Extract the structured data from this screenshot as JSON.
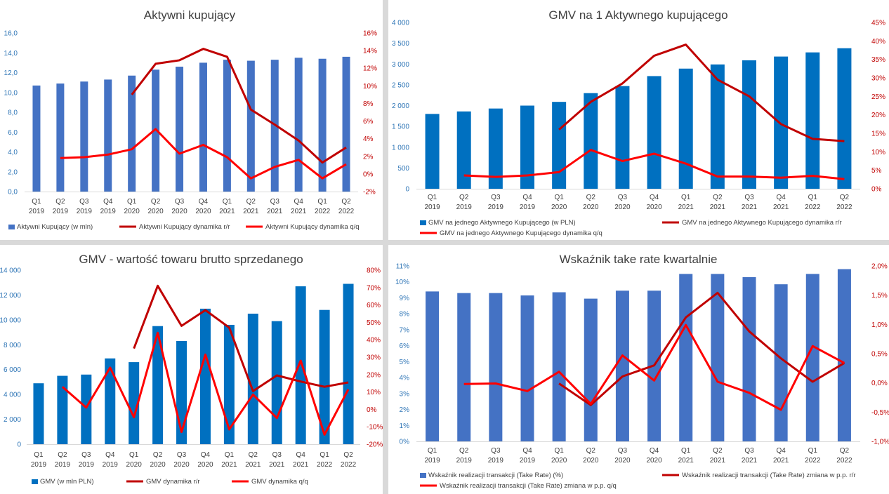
{
  "colors": {
    "bar_a": "#4472c4",
    "bar_b": "#0070c0",
    "line_yoy": "#c00000",
    "line_qoq": "#ff0000",
    "left_axis_text": "#2e75b6",
    "right_axis_text": "#c00000",
    "category_text": "#404040"
  },
  "categories": [
    {
      "q": "Q1",
      "y": "2019"
    },
    {
      "q": "Q2",
      "y": "2019"
    },
    {
      "q": "Q3",
      "y": "2019"
    },
    {
      "q": "Q4",
      "y": "2019"
    },
    {
      "q": "Q1",
      "y": "2020"
    },
    {
      "q": "Q2",
      "y": "2020"
    },
    {
      "q": "Q3",
      "y": "2020"
    },
    {
      "q": "Q4",
      "y": "2020"
    },
    {
      "q": "Q1",
      "y": "2021"
    },
    {
      "q": "Q2",
      "y": "2021"
    },
    {
      "q": "Q3",
      "y": "2021"
    },
    {
      "q": "Q4",
      "y": "2021"
    },
    {
      "q": "Q1",
      "y": "2022"
    },
    {
      "q": "Q2",
      "y": "2022"
    }
  ],
  "chart_data": [
    {
      "type": "bar",
      "title": "Aktywni kupujący",
      "left_axis": {
        "min": 0,
        "max": 16,
        "ticks": [
          "0,0",
          "2,0",
          "4,0",
          "6,0",
          "8,0",
          "10,0",
          "12,0",
          "14,0",
          "16,0"
        ]
      },
      "right_axis": {
        "min": -2,
        "max": 16,
        "ticks": [
          "-2%",
          "0%",
          "2%",
          "4%",
          "6%",
          "8%",
          "10%",
          "12%",
          "14%",
          "16%"
        ]
      },
      "bars": {
        "name": "Aktywni Kupujący (w mln)",
        "values": [
          10.7,
          10.9,
          11.1,
          11.3,
          11.7,
          12.3,
          12.6,
          13.0,
          13.3,
          13.2,
          13.3,
          13.5,
          13.4,
          13.6
        ]
      },
      "yoy": {
        "name": "Aktywni Kupujący dynamika r/r",
        "values": [
          null,
          null,
          null,
          null,
          9.0,
          12.5,
          12.9,
          14.2,
          13.3,
          7.3,
          5.6,
          3.8,
          1.3,
          3.0
        ]
      },
      "qoq": {
        "name": "Aktywni Kupujący dynamika q/q",
        "values": [
          null,
          1.8,
          1.9,
          2.2,
          2.8,
          5.1,
          2.3,
          3.3,
          1.9,
          -0.5,
          0.8,
          1.6,
          -0.5,
          1.1
        ]
      },
      "legend_order": [
        "bars",
        "yoy",
        "qoq"
      ]
    },
    {
      "type": "bar",
      "title": "GMV na 1 Aktywnego kupującego",
      "left_axis": {
        "min": 0,
        "max": 4000,
        "ticks": [
          "0",
          "500",
          "1 000",
          "1 500",
          "2 000",
          "2 500",
          "3 000",
          "3 500",
          "4 000"
        ]
      },
      "right_axis": {
        "min": 0,
        "max": 45,
        "ticks": [
          "0%",
          "5%",
          "10%",
          "15%",
          "20%",
          "25%",
          "30%",
          "35%",
          "40%",
          "45%"
        ]
      },
      "bars": {
        "name": "GMV na jednego Aktywnego Kupującego (w PLN)",
        "values": [
          1800,
          1860,
          1930,
          2000,
          2090,
          2300,
          2470,
          2710,
          2890,
          2990,
          3090,
          3180,
          3280,
          3380
        ]
      },
      "yoy": {
        "name": "GMV na jednego Aktywnego Kupującego dynamika r/r",
        "values": [
          null,
          null,
          null,
          null,
          16,
          23.5,
          28.5,
          36,
          39,
          29.5,
          25,
          17.5,
          13.5,
          12.9
        ]
      },
      "qoq": {
        "name": "GMV na jednego Aktywnego Kupującego dynamika q/q",
        "values": [
          null,
          3.6,
          3.2,
          3.6,
          4.5,
          10.5,
          7.5,
          9.5,
          6.8,
          3.3,
          3.3,
          3.0,
          3.5,
          2.6
        ]
      },
      "legend_order": [
        "bars",
        "yoy",
        "qoq"
      ]
    },
    {
      "type": "bar",
      "title": "GMV - wartość towaru brutto sprzedanego",
      "left_axis": {
        "min": 0,
        "max": 14000,
        "ticks": [
          "0",
          "2 000",
          "4 000",
          "6 000",
          "8 000",
          "10 000",
          "12 000",
          "14 000"
        ]
      },
      "right_axis": {
        "min": -20,
        "max": 80,
        "ticks": [
          "-20%",
          "-10%",
          "0%",
          "10%",
          "20%",
          "30%",
          "40%",
          "50%",
          "60%",
          "70%",
          "80%"
        ]
      },
      "bars": {
        "name": "GMV (w mln PLN)",
        "values": [
          4900,
          5500,
          5600,
          6900,
          6600,
          9500,
          8300,
          10900,
          9600,
          10500,
          9900,
          12700,
          10800,
          12900
        ]
      },
      "yoy": {
        "name": "GMV dynamika r/r",
        "values": [
          null,
          null,
          null,
          null,
          35,
          71,
          48,
          57,
          47,
          10.5,
          19.5,
          16,
          13,
          15.5
        ]
      },
      "qoq": {
        "name": "GMV dynamika q/q",
        "values": [
          null,
          13,
          1,
          24,
          -4.5,
          44,
          -13,
          31.5,
          -11.5,
          8.5,
          -5,
          28,
          -14.5,
          11.5
        ]
      },
      "legend_order": [
        "bars",
        "yoy",
        "qoq"
      ]
    },
    {
      "type": "bar",
      "title": "Wskaźnik take rate kwartalnie",
      "left_axis": {
        "min": 0,
        "max": 11,
        "ticks": [
          "0%",
          "1%",
          "2%",
          "3%",
          "4%",
          "5%",
          "6%",
          "7%",
          "8%",
          "9%",
          "10%",
          "11%"
        ]
      },
      "right_axis": {
        "min": -1.0,
        "max": 2.0,
        "ticks": [
          "-1,0%",
          "-0,5%",
          "0,0%",
          "0,5%",
          "1,0%",
          "1,5%",
          "2,0%"
        ]
      },
      "bars": {
        "name": "Wskaźnik realizacji transakcji (Take Rate) (%)",
        "values": [
          9.4,
          9.3,
          9.3,
          9.15,
          9.35,
          8.95,
          9.45,
          9.45,
          10.5,
          10.5,
          10.3,
          9.85,
          10.5,
          10.8
        ]
      },
      "yoy": {
        "name": "Wskaźnik realizacji transakcji (Take Rate) zmiana w p.p. r/r",
        "values": [
          null,
          null,
          null,
          null,
          -0.01,
          -0.38,
          0.11,
          0.3,
          1.12,
          1.54,
          0.88,
          0.42,
          0.02,
          0.34
        ]
      },
      "qoq": {
        "name": "Wskaźnik realizacji transakcji (Take Rate) zmiana w p.p. q/q",
        "values": [
          null,
          -0.02,
          -0.01,
          -0.14,
          0.19,
          -0.36,
          0.47,
          0.04,
          0.99,
          0.02,
          -0.17,
          -0.46,
          0.63,
          0.34
        ]
      },
      "legend_order": [
        "bars",
        "yoy",
        "qoq"
      ]
    }
  ]
}
